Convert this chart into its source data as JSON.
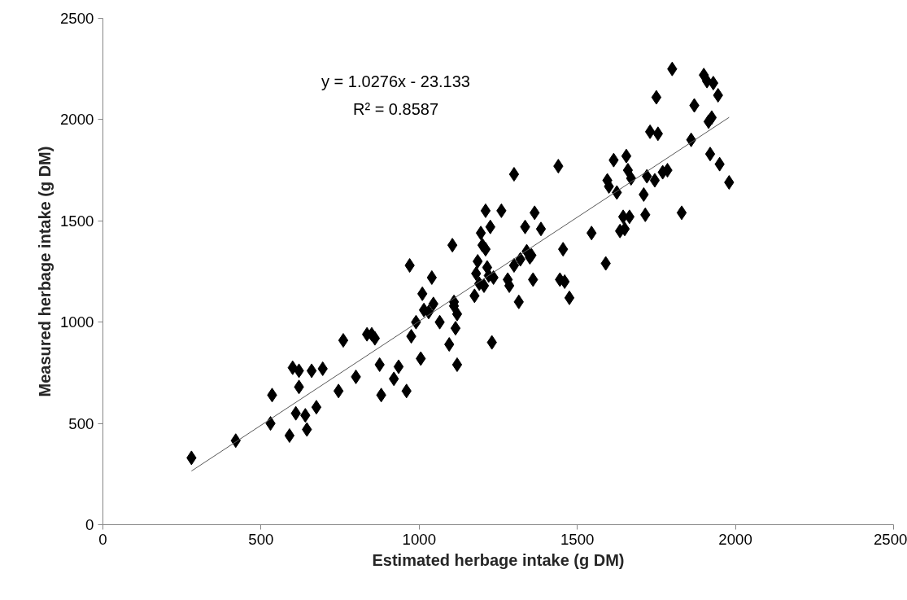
{
  "chart_data": {
    "type": "scatter",
    "xlabel": "Estimated herbage intake (g DM)",
    "ylabel": "Measured herbage intake (g DM)",
    "xlim": [
      0,
      2500
    ],
    "ylim": [
      0,
      2500
    ],
    "xticks": [
      0,
      500,
      1000,
      1500,
      2000,
      2500
    ],
    "yticks": [
      0,
      500,
      1000,
      1500,
      2000,
      2500
    ],
    "grid": false,
    "annotations": [
      "y = 1.0276x - 23.133",
      "R² = 0.8587"
    ],
    "series": [
      {
        "marker": "diamond",
        "color": "#000000",
        "x": [
          280,
          420,
          530,
          535,
          590,
          600,
          610,
          620,
          620,
          640,
          645,
          660,
          675,
          695,
          745,
          760,
          800,
          835,
          850,
          860,
          875,
          880,
          920,
          935,
          960,
          970,
          975,
          990,
          1005,
          1010,
          1015,
          1030,
          1040,
          1045,
          1065,
          1095,
          1105,
          1110,
          1110,
          1115,
          1120,
          1120,
          1175,
          1180,
          1185,
          1190,
          1195,
          1200,
          1205,
          1210,
          1210,
          1215,
          1220,
          1225,
          1230,
          1235,
          1260,
          1280,
          1285,
          1300,
          1300,
          1315,
          1320,
          1335,
          1340,
          1350,
          1355,
          1360,
          1365,
          1385,
          1440,
          1445,
          1455,
          1460,
          1475,
          1545,
          1590,
          1595,
          1600,
          1615,
          1625,
          1635,
          1645,
          1650,
          1655,
          1660,
          1665,
          1670,
          1710,
          1715,
          1720,
          1730,
          1745,
          1750,
          1755,
          1770,
          1785,
          1800,
          1830,
          1860,
          1870,
          1900,
          1910,
          1915,
          1920,
          1925,
          1930,
          1945,
          1950,
          1980
        ],
        "values": [
          330,
          415,
          500,
          640,
          440,
          775,
          550,
          680,
          760,
          540,
          470,
          760,
          580,
          770,
          660,
          910,
          730,
          940,
          940,
          920,
          790,
          640,
          720,
          780,
          660,
          1280,
          930,
          1000,
          820,
          1140,
          1060,
          1050,
          1220,
          1090,
          1000,
          890,
          1380,
          1100,
          1080,
          970,
          1040,
          790,
          1130,
          1240,
          1300,
          1190,
          1440,
          1380,
          1180,
          1360,
          1550,
          1270,
          1230,
          1470,
          900,
          1220,
          1550,
          1210,
          1180,
          1730,
          1280,
          1100,
          1310,
          1470,
          1350,
          1320,
          1330,
          1210,
          1540,
          1460,
          1770,
          1210,
          1360,
          1200,
          1120,
          1440,
          1290,
          1700,
          1670,
          1800,
          1640,
          1450,
          1520,
          1460,
          1820,
          1750,
          1520,
          1710,
          1630,
          1530,
          1720,
          1940,
          1700,
          2110,
          1930,
          1740,
          1750,
          2250,
          1540,
          1900,
          2070,
          2220,
          2190,
          1990,
          1830,
          2010,
          2180,
          2120,
          1780,
          1690
        ]
      },
      {
        "type": "line",
        "color": "#595959",
        "line_style": "solid",
        "x": [
          280,
          1980
        ],
        "values": [
          265,
          2011
        ]
      }
    ]
  }
}
